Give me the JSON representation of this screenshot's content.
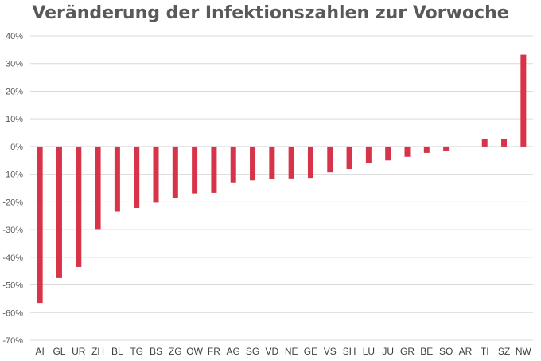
{
  "chart_data": {
    "type": "bar",
    "title": "Veränderung der Infektionszahlen zur Vorwoche",
    "categories": [
      "AI",
      "GL",
      "UR",
      "ZH",
      "BL",
      "TG",
      "BS",
      "ZG",
      "OW",
      "FR",
      "AG",
      "SG",
      "VD",
      "NE",
      "GE",
      "VS",
      "SH",
      "LU",
      "JU",
      "GR",
      "BE",
      "SO",
      "AR",
      "TI",
      "SZ",
      "NW"
    ],
    "values": [
      -56.5,
      -47.5,
      -43.5,
      -29.8,
      -23.5,
      -22.2,
      -20.3,
      -18.5,
      -16.9,
      -16.7,
      -13.2,
      -12.2,
      -11.8,
      -11.5,
      -11.3,
      -9.3,
      -8.1,
      -5.8,
      -5.0,
      -3.7,
      -2.3,
      -1.5,
      0,
      2.6,
      2.6,
      33.2
    ],
    "ylim": [
      -70,
      40
    ],
    "yticks": [
      40,
      30,
      20,
      10,
      0,
      -10,
      -20,
      -30,
      -40,
      -50,
      -60,
      -70
    ],
    "ytick_labels": [
      "40%",
      "30%",
      "20%",
      "10%",
      "0%",
      "-10%",
      "-20%",
      "-30%",
      "-40%",
      "-50%",
      "-60%",
      "-70%"
    ],
    "grid": true,
    "bar_color": "#d7344a"
  }
}
